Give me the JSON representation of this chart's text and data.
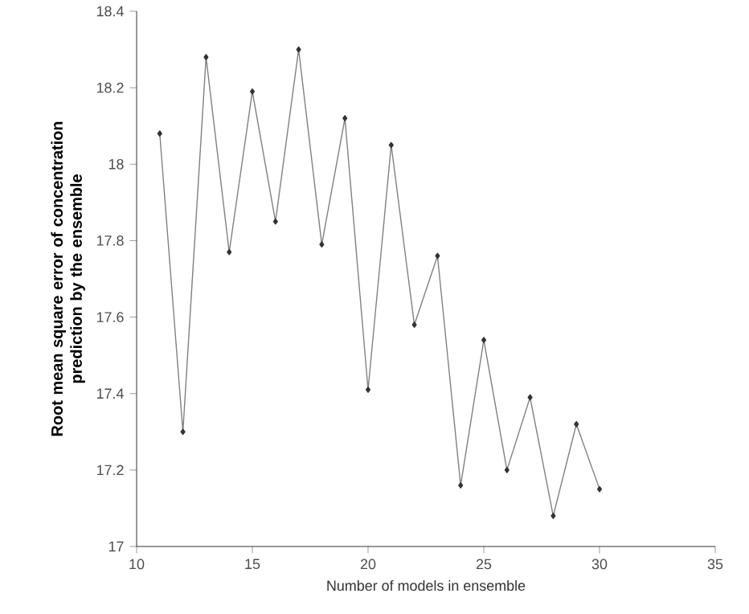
{
  "chart_data": {
    "type": "line",
    "xlabel": "Number of models in ensemble",
    "ylabel": "Root mean square error of concentration prediction by the ensemble",
    "x": [
      11,
      12,
      13,
      14,
      15,
      16,
      17,
      18,
      19,
      20,
      21,
      22,
      23,
      24,
      25,
      26,
      27,
      28,
      29,
      30
    ],
    "series": [
      {
        "color": "#808080",
        "values": [
          18.08,
          17.3,
          18.28,
          17.77,
          18.19,
          17.85,
          18.3,
          17.79,
          18.12,
          17.41,
          18.05,
          17.58,
          17.76,
          17.16,
          17.54,
          17.2,
          17.39,
          17.08,
          17.32,
          17.15
        ]
      }
    ],
    "xlim": [
      10,
      35
    ],
    "xticks": [
      10,
      15,
      20,
      25,
      30,
      35
    ],
    "ylim": [
      17,
      18.4
    ],
    "yticks": [
      17,
      17.2,
      17.4,
      17.6,
      17.8,
      18,
      18.2,
      18.4
    ],
    "marker": "diamond",
    "line_style": "solid"
  }
}
